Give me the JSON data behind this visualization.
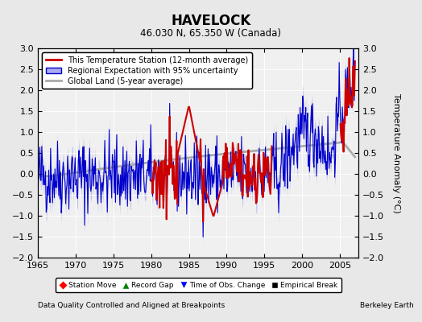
{
  "title": "HAVELOCK",
  "subtitle": "46.030 N, 65.350 W (Canada)",
  "xlabel_bottom": "Data Quality Controlled and Aligned at Breakpoints",
  "xlabel_right": "Berkeley Earth",
  "ylabel": "Temperature Anomaly (°C)",
  "xlim": [
    1965,
    2007.5
  ],
  "ylim": [
    -2,
    3
  ],
  "yticks": [
    -2,
    -1.5,
    -1,
    -0.5,
    0,
    0.5,
    1,
    1.5,
    2,
    2.5,
    3
  ],
  "xticks": [
    1965,
    1970,
    1975,
    1980,
    1985,
    1990,
    1995,
    2000,
    2005
  ],
  "bg_color": "#e8e8e8",
  "plot_bg_color": "#f0f0f0",
  "red_color": "#cc0000",
  "blue_color": "#0000cc",
  "blue_fill_color": "#aaaaee",
  "gray_color": "#aaaaaa",
  "legend_labels": [
    "This Temperature Station (12-month average)",
    "Regional Expectation with 95% uncertainty",
    "Global Land (5-year average)"
  ],
  "marker_labels": [
    "Station Move",
    "Record Gap",
    "Time of Obs. Change",
    "Empirical Break"
  ]
}
